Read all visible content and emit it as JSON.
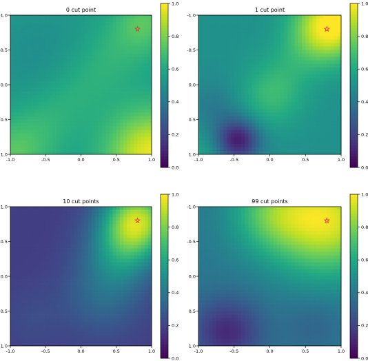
{
  "chart_data": [
    {
      "type": "heatmap",
      "title": "0 cut point",
      "xlim": [
        -1.0,
        1.0
      ],
      "ylim": [
        1.0,
        -1.0
      ],
      "y_inverted": true,
      "x_ticks": [
        "-1.0",
        "-0.5",
        "0.0",
        "0.5",
        "1.0"
      ],
      "y_ticks": [
        "-1.0",
        "-0.5",
        "0.0",
        "0.5",
        "1.0"
      ],
      "colorbar": {
        "range": [
          0.0,
          1.0
        ],
        "ticks": [
          "0.0",
          "0.2",
          "0.4",
          "0.6",
          "0.8",
          "1.0"
        ],
        "colormap": "viridis"
      },
      "marker": {
        "symbol": "star",
        "x": 0.8,
        "y": -0.8,
        "color": "#e8343a"
      },
      "field": {
        "base": 0.55,
        "terms": [
          {
            "x": 1.0,
            "y": 1.0,
            "amp": 0.42,
            "sigma": 0.45
          },
          {
            "x": -0.9,
            "y": 1.0,
            "amp": 0.08,
            "sigma": 0.35
          },
          {
            "x": -0.5,
            "y": -0.3,
            "amp": -0.07,
            "sigma": 0.6
          },
          {
            "x": 0.85,
            "y": -0.85,
            "amp": 0.08,
            "sigma": 0.25
          }
        ],
        "diag": {
          "amp": 0.12,
          "sigma": 0.35
        }
      }
    },
    {
      "type": "heatmap",
      "title": "1 cut point",
      "xlim": [
        -1.0,
        1.0
      ],
      "ylim": [
        1.0,
        -1.0
      ],
      "y_inverted": true,
      "x_ticks": [
        "-1.0",
        "-0.5",
        "0.0",
        "0.5",
        "1.0"
      ],
      "y_ticks": [
        "-1.0",
        "-0.5",
        "0.0",
        "0.5",
        "1.0"
      ],
      "colorbar": {
        "range": [
          0.0,
          1.0
        ],
        "ticks": [
          "0.0",
          "0.2",
          "0.4",
          "0.6",
          "0.8",
          "1.0"
        ],
        "colormap": "viridis"
      },
      "marker": {
        "symbol": "star",
        "x": 0.8,
        "y": -0.8,
        "color": "#e8343a"
      },
      "field": {
        "base": 0.5,
        "terms": [
          {
            "x": 0.85,
            "y": -0.85,
            "amp": 0.45,
            "sigma": 0.35
          },
          {
            "x": -0.45,
            "y": 0.8,
            "amp": -0.45,
            "sigma": 0.22
          },
          {
            "x": -0.7,
            "y": 0.4,
            "amp": -0.15,
            "sigma": 0.3
          },
          {
            "x": 0.1,
            "y": 0.2,
            "amp": 0.1,
            "sigma": 0.3
          }
        ],
        "diag": {
          "amp": 0.1,
          "sigma": 0.3
        }
      }
    },
    {
      "type": "heatmap",
      "title": "10 cut points",
      "xlim": [
        -1.0,
        1.0
      ],
      "ylim": [
        1.0,
        -1.0
      ],
      "y_inverted": true,
      "x_ticks": [
        "-1.0",
        "-0.5",
        "0.0",
        "0.5",
        "1.0"
      ],
      "y_ticks": [
        "-1.0",
        "-0.5",
        "0.0",
        "0.5",
        "1.0"
      ],
      "colorbar": {
        "range": [
          0.0,
          1.0
        ],
        "ticks": [
          "0.0",
          "0.2",
          "0.4",
          "0.6",
          "0.8",
          "1.0"
        ],
        "colormap": "viridis"
      },
      "marker": {
        "symbol": "star",
        "x": 0.8,
        "y": -0.8,
        "color": "#e8343a"
      },
      "field": {
        "base": 0.18,
        "terms": [
          {
            "x": 0.8,
            "y": -0.8,
            "amp": 0.7,
            "sigma": 0.35
          },
          {
            "x": 0.55,
            "y": -0.3,
            "amp": 0.25,
            "sigma": 0.35
          },
          {
            "x": 0.3,
            "y": 0.3,
            "amp": 0.15,
            "sigma": 0.4
          },
          {
            "x": -0.7,
            "y": 0.6,
            "amp": 0.05,
            "sigma": 0.3
          }
        ]
      }
    },
    {
      "type": "heatmap",
      "title": "99 cut points",
      "xlim": [
        -1.0,
        1.0
      ],
      "ylim": [
        1.0,
        -1.0
      ],
      "y_inverted": true,
      "x_ticks": [
        "-1.0",
        "-0.5",
        "0.0",
        "0.5",
        "1.0"
      ],
      "y_ticks": [
        "-1.0",
        "-0.5",
        "0.0",
        "0.5",
        "1.0"
      ],
      "colorbar": {
        "range": [
          0.0,
          1.0
        ],
        "ticks": [
          "0.0",
          "0.2",
          "0.4",
          "0.6",
          "0.8",
          "1.0"
        ],
        "colormap": "viridis"
      },
      "marker": {
        "symbol": "star",
        "x": 0.8,
        "y": -0.8,
        "color": "#e8343a"
      },
      "field": {
        "base": 0.4,
        "terms": [
          {
            "x": 0.8,
            "y": -0.8,
            "amp": 0.55,
            "sigma": 0.55
          },
          {
            "x": 0.0,
            "y": -0.9,
            "amp": 0.25,
            "sigma": 0.4
          },
          {
            "x": -0.6,
            "y": 0.8,
            "amp": -0.28,
            "sigma": 0.35
          },
          {
            "x": 0.6,
            "y": 0.7,
            "amp": -0.08,
            "sigma": 0.3
          }
        ]
      }
    }
  ]
}
